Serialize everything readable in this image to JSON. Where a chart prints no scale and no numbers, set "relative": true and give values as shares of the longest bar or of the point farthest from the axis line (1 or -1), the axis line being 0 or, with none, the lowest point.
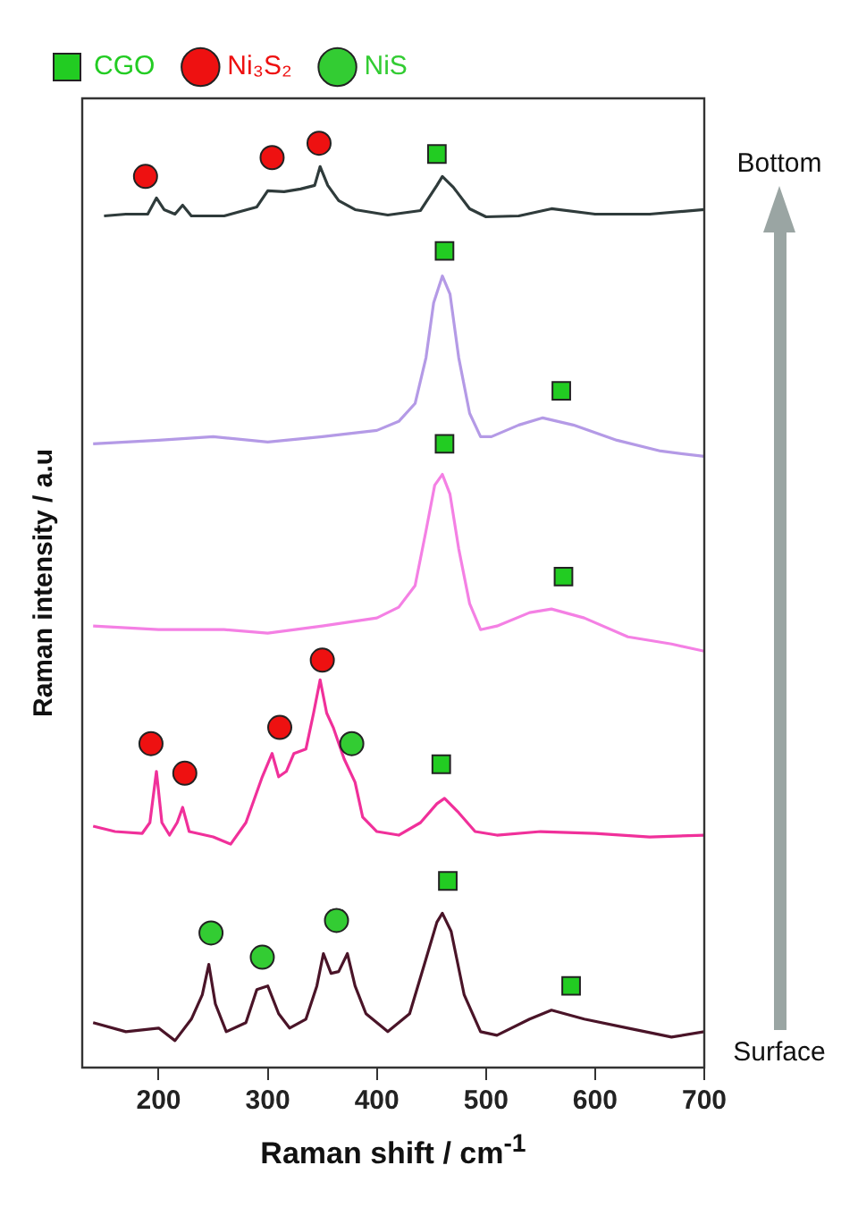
{
  "chart_data": {
    "type": "line",
    "relative": true,
    "xlabel": "Raman shift / cm$^{-1}$",
    "ylabel": "Raman intensity / a.u",
    "xlim": [
      130,
      700
    ],
    "xticks": [
      200,
      300,
      400,
      500,
      600,
      700
    ],
    "tick_labels": "x",
    "grid": false,
    "legend": "top left",
    "annotations": [
      "Bottom",
      "Surface"
    ],
    "series": [
      {
        "type": "line",
        "color": "#2f3b3b",
        "x": [
          150,
          170,
          190,
          198,
          205,
          215,
          222,
          230,
          260,
          290,
          300,
          315,
          330,
          343,
          348,
          355,
          365,
          380,
          410,
          440,
          455,
          460,
          470,
          485,
          500,
          530,
          560,
          600,
          650,
          700
        ],
        "values": [
          0.919,
          0.921,
          0.921,
          0.939,
          0.926,
          0.921,
          0.931,
          0.919,
          0.919,
          0.929,
          0.947,
          0.946,
          0.949,
          0.953,
          0.974,
          0.953,
          0.936,
          0.926,
          0.92,
          0.925,
          0.953,
          0.963,
          0.951,
          0.927,
          0.918,
          0.919,
          0.927,
          0.921,
          0.921,
          0.926
        ]
      },
      {
        "type": "line",
        "color": "#b49ae6",
        "x": [
          140,
          200,
          250,
          300,
          350,
          400,
          420,
          435,
          445,
          452,
          460,
          467,
          475,
          485,
          495,
          505,
          530,
          552,
          580,
          620,
          660,
          700
        ],
        "values": [
          0.665,
          0.669,
          0.673,
          0.667,
          0.673,
          0.68,
          0.69,
          0.71,
          0.761,
          0.822,
          0.852,
          0.832,
          0.761,
          0.699,
          0.673,
          0.673,
          0.686,
          0.694,
          0.686,
          0.669,
          0.657,
          0.651
        ]
      },
      {
        "type": "line",
        "color": "#f480e4",
        "x": [
          140,
          200,
          260,
          300,
          350,
          400,
          420,
          435,
          445,
          453,
          460,
          467,
          475,
          485,
          495,
          510,
          540,
          560,
          590,
          630,
          670,
          700
        ],
        "values": [
          0.462,
          0.458,
          0.458,
          0.454,
          0.462,
          0.471,
          0.483,
          0.507,
          0.568,
          0.619,
          0.631,
          0.609,
          0.548,
          0.487,
          0.458,
          0.462,
          0.477,
          0.481,
          0.471,
          0.45,
          0.442,
          0.434
        ]
      },
      {
        "type": "line",
        "color": "#f0309a",
        "x": [
          140,
          160,
          185,
          192,
          198,
          203,
          210,
          217,
          222,
          228,
          250,
          266,
          280,
          295,
          304,
          310,
          317,
          324,
          335,
          342,
          348,
          354,
          360,
          370,
          380,
          387,
          400,
          420,
          440,
          455,
          462,
          475,
          490,
          510,
          550,
          600,
          650,
          700
        ],
        "values": [
          0.239,
          0.233,
          0.231,
          0.243,
          0.3,
          0.243,
          0.229,
          0.243,
          0.26,
          0.233,
          0.227,
          0.219,
          0.243,
          0.294,
          0.32,
          0.294,
          0.3,
          0.32,
          0.325,
          0.365,
          0.402,
          0.365,
          0.349,
          0.314,
          0.288,
          0.249,
          0.233,
          0.229,
          0.243,
          0.264,
          0.27,
          0.254,
          0.233,
          0.229,
          0.233,
          0.231,
          0.227,
          0.229
        ]
      },
      {
        "type": "line",
        "color": "#4a1428",
        "x": [
          140,
          170,
          200,
          215,
          230,
          240,
          246,
          252,
          262,
          280,
          290,
          300,
          310,
          320,
          335,
          345,
          351,
          358,
          365,
          373,
          380,
          390,
          410,
          430,
          445,
          455,
          460,
          468,
          480,
          495,
          510,
          540,
          560,
          590,
          630,
          670,
          700
        ],
        "values": [
          0.02,
          0.01,
          0.014,
          0,
          0.024,
          0.051,
          0.085,
          0.041,
          0.01,
          0.02,
          0.057,
          0.061,
          0.03,
          0.014,
          0.024,
          0.061,
          0.097,
          0.075,
          0.077,
          0.097,
          0.061,
          0.03,
          0.01,
          0.03,
          0.091,
          0.132,
          0.142,
          0.122,
          0.051,
          0.01,
          0.006,
          0.024,
          0.034,
          0.024,
          0.014,
          0.004,
          0.01
        ]
      },
      {
        "type": "scatter",
        "name": "CGO",
        "marker": "square",
        "color": "#22cc22",
        "x": [
          455,
          462,
          569,
          462,
          571,
          459,
          465,
          578
        ],
        "values": [
          0.988,
          0.88,
          0.724,
          0.665,
          0.517,
          0.308,
          0.178,
          0.061
        ]
      },
      {
        "type": "scatter",
        "name": "Ni₃S₂",
        "marker": "circle",
        "color": "#ee1111",
        "x": [
          188,
          304,
          347,
          193,
          224,
          311,
          350
        ],
        "values": [
          0.963,
          0.984,
          1.0,
          0.331,
          0.298,
          0.349,
          0.424
        ]
      },
      {
        "type": "scatter",
        "name": "NiS",
        "marker": "circle",
        "color": "#33cc33",
        "x": [
          377,
          248,
          295,
          363
        ],
        "values": [
          0.331,
          0.12,
          0.093,
          0.134
        ]
      }
    ]
  }
}
